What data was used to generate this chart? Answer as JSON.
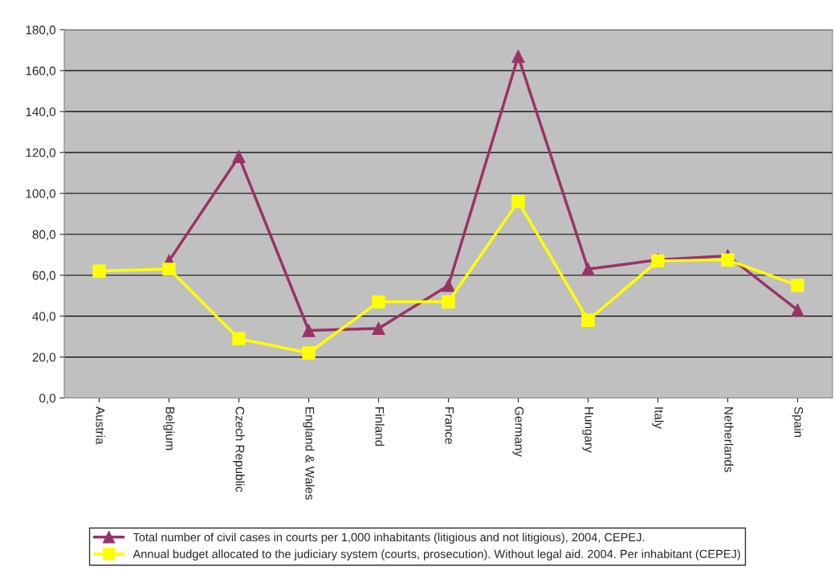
{
  "chart_data": {
    "type": "line",
    "categories": [
      "Austria",
      "Belgium",
      "Czech Republic",
      "England & Wales",
      "Finland",
      "France",
      "Germany",
      "Hungary",
      "Italy",
      "Netherlands",
      "Spain"
    ],
    "series": [
      {
        "name": "Total number of civil cases in courts per 1,000 inhabitants (litigious and not litigious), 2004, CEPEJ.",
        "color": "#993366",
        "marker": "triangle",
        "values": [
          null,
          67,
          118,
          33,
          34,
          55,
          167,
          63,
          67.5,
          69.5,
          43
        ]
      },
      {
        "name": "Annual budget allocated to the judiciary system (courts, prosecution). Without legal aid. 2004. Per inhabitant (CEPEJ)",
        "color": "#ffff00",
        "marker": "square",
        "values": [
          62,
          63,
          29,
          22,
          47,
          47,
          96,
          38,
          67,
          67.5,
          55
        ]
      }
    ],
    "ylim": [
      0,
      180
    ],
    "yticks": [
      {
        "value": 0,
        "label": "0,0"
      },
      {
        "value": 20,
        "label": "20,0"
      },
      {
        "value": 40,
        "label": "40,0"
      },
      {
        "value": 60,
        "label": "60,0"
      },
      {
        "value": 80,
        "label": "80,0"
      },
      {
        "value": 100,
        "label": "100,0"
      },
      {
        "value": 120,
        "label": "120,0"
      },
      {
        "value": 140,
        "label": "140,0"
      },
      {
        "value": 160,
        "label": "160,0"
      },
      {
        "value": 180,
        "label": "180,0"
      }
    ],
    "grid": "y",
    "legend": "bottom",
    "line_style": "solid"
  }
}
